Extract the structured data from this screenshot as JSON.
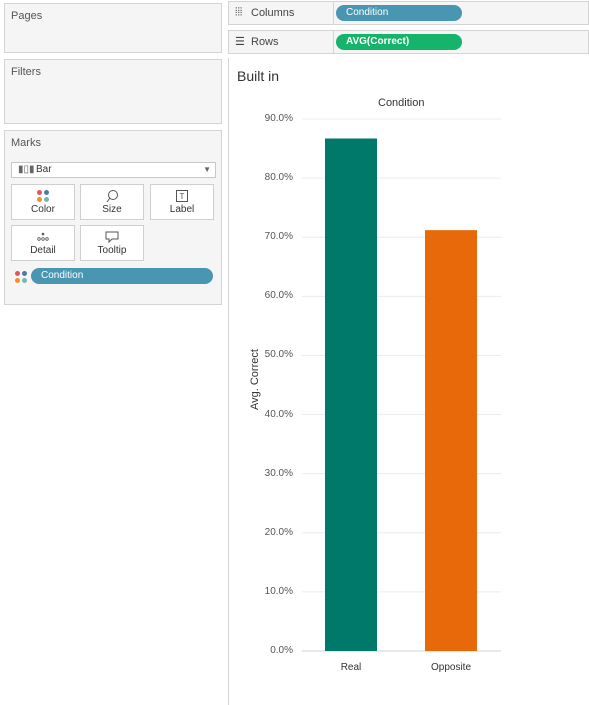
{
  "panels": {
    "pages_label": "Pages",
    "filters_label": "Filters",
    "marks_label": "Marks",
    "mark_type": "Bar",
    "buttons": {
      "color": "Color",
      "size": "Size",
      "label": "Label",
      "detail": "Detail",
      "tooltip": "Tooltip"
    },
    "color_pill": "Condition"
  },
  "shelves": {
    "columns_label": "Columns",
    "columns_pill": "Condition",
    "rows_label": "Rows",
    "rows_pill": "AVG(Correct)"
  },
  "view": {
    "sheet_title": "Built in"
  },
  "colors": {
    "real": "#00796b",
    "opposite": "#e8690a",
    "pill_blue": "#4996b2",
    "pill_green": "#16b36b"
  },
  "chart_data": {
    "type": "bar",
    "title": "Condition",
    "ylabel": "Avg. Correct",
    "xlabel": "",
    "categories": [
      "Real",
      "Opposite"
    ],
    "values": [
      86.7,
      71.2
    ],
    "ylim": [
      0,
      90
    ],
    "yticks": [
      "90.0%",
      "80.0%",
      "70.0%",
      "60.0%",
      "50.0%",
      "40.0%",
      "30.0%",
      "20.0%",
      "10.0%",
      "0.0%"
    ],
    "ytick_values": [
      90,
      80,
      70,
      60,
      50,
      40,
      30,
      20,
      10,
      0
    ],
    "grid": true
  }
}
